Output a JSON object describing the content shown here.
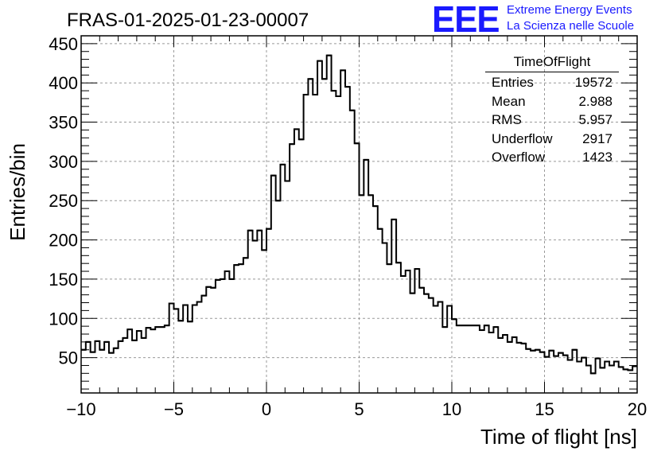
{
  "chart_data": {
    "type": "histogram",
    "title": "FRAS-01-2025-01-23-00007",
    "xlabel": "Time of flight [ns]",
    "ylabel": "Entries/bin",
    "xlim": [
      -10,
      20
    ],
    "ylim": [
      5,
      460
    ],
    "grid": true,
    "bin_width": 0.25,
    "x_ticks": [
      "−10",
      "−5",
      "0",
      "5",
      "10",
      "15",
      "20"
    ],
    "y_ticks": [
      "50",
      "100",
      "150",
      "200",
      "250",
      "300",
      "350",
      "400",
      "450"
    ],
    "values": [
      60,
      70,
      57,
      71,
      60,
      70,
      56,
      62,
      71,
      75,
      86,
      72,
      84,
      75,
      88,
      86,
      89,
      89,
      91,
      119,
      112,
      97,
      117,
      96,
      117,
      121,
      129,
      140,
      139,
      149,
      150,
      160,
      150,
      168,
      169,
      177,
      212,
      199,
      212,
      187,
      214,
      282,
      250,
      296,
      275,
      322,
      341,
      328,
      385,
      405,
      385,
      428,
      405,
      435,
      390,
      383,
      416,
      395,
      365,
      323,
      257,
      302,
      257,
      243,
      214,
      196,
      169,
      226,
      171,
      154,
      161,
      132,
      163,
      139,
      131,
      126,
      116,
      121,
      89,
      116,
      99,
      91,
      91,
      91,
      91,
      91,
      85,
      91,
      82,
      89,
      75,
      79,
      70,
      76,
      69,
      68,
      61,
      59,
      60,
      57,
      51,
      59,
      52,
      56,
      53,
      47,
      60,
      45,
      50,
      40,
      30,
      49,
      37,
      45,
      40,
      45,
      38,
      35,
      34,
      39
    ],
    "stats_box": {
      "title": "TimeOfFlight",
      "rows": [
        {
          "label": "Entries",
          "value": "19572"
        },
        {
          "label": "Mean",
          "value": "2.988"
        },
        {
          "label": "RMS",
          "value": "5.957"
        },
        {
          "label": "Underflow",
          "value": "2917"
        },
        {
          "label": "Overflow",
          "value": "1423"
        }
      ]
    }
  },
  "logo": {
    "letters": "EEE",
    "line1": "Extreme Energy Events",
    "line2": "La Scienza nelle Scuole",
    "color": "#1a1aff"
  }
}
